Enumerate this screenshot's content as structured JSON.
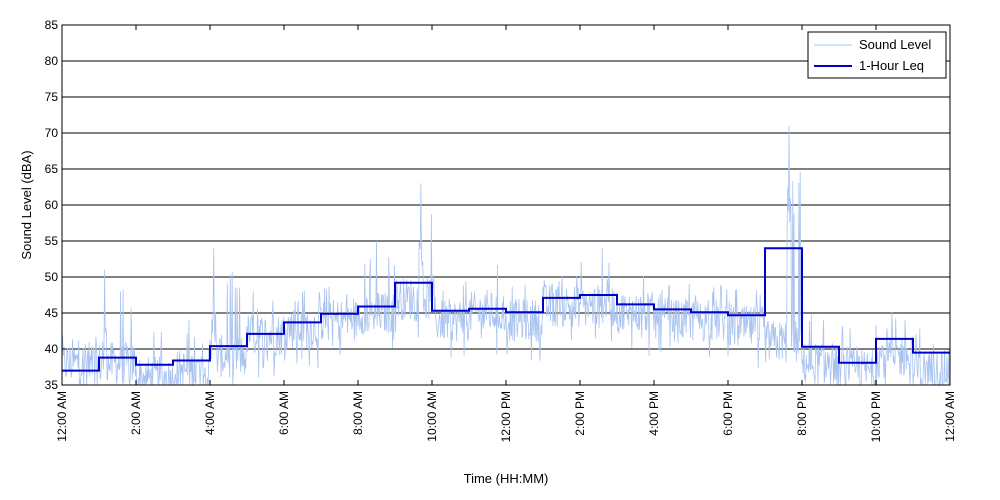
{
  "chart_data": {
    "type": "line",
    "title": "",
    "xlabel": "Time (HH:MM)",
    "ylabel": "Sound Level (dBA)",
    "ylim": [
      35,
      85
    ],
    "y_ticks": [
      35,
      40,
      45,
      50,
      55,
      60,
      65,
      70,
      75,
      80,
      85
    ],
    "xlim_hours": [
      0,
      24
    ],
    "x_ticks": [
      {
        "hour": 0,
        "label": "12:00 AM"
      },
      {
        "hour": 2,
        "label": "2:00 AM"
      },
      {
        "hour": 4,
        "label": "4:00 AM"
      },
      {
        "hour": 6,
        "label": "6:00 AM"
      },
      {
        "hour": 8,
        "label": "8:00 AM"
      },
      {
        "hour": 10,
        "label": "10:00 AM"
      },
      {
        "hour": 12,
        "label": "12:00 PM"
      },
      {
        "hour": 14,
        "label": "2:00 PM"
      },
      {
        "hour": 16,
        "label": "4:00 PM"
      },
      {
        "hour": 18,
        "label": "6:00 PM"
      },
      {
        "hour": 20,
        "label": "8:00 PM"
      },
      {
        "hour": 22,
        "label": "10:00 PM"
      },
      {
        "hour": 24,
        "label": "12:00 AM"
      }
    ],
    "grid": "horizontal",
    "legend_position": "top-right",
    "colors": {
      "sound_level": "#a9c3f0",
      "leq": "#0000cc"
    },
    "series": [
      {
        "name": "Sound Level",
        "style": "thin-light-blue",
        "peaks": [
          {
            "hour": 1.15,
            "value": 51
          },
          {
            "hour": 4.1,
            "value": 54
          },
          {
            "hour": 8.5,
            "value": 55
          },
          {
            "hour": 9.7,
            "value": 63
          },
          {
            "hour": 14.6,
            "value": 54
          },
          {
            "hour": 19.65,
            "value": 71
          }
        ],
        "hourly_typical": [
          38,
          38,
          36,
          37,
          39,
          42,
          43,
          44,
          45,
          47,
          44,
          45,
          44,
          46,
          46,
          45,
          44,
          44,
          43,
          41,
          38,
          37,
          39,
          37
        ],
        "hourly_max": [
          44,
          51,
          45,
          46,
          54,
          50,
          50,
          50,
          55,
          63,
          52,
          54,
          51,
          52,
          54,
          52,
          51,
          51,
          52,
          71,
          47,
          45,
          48,
          47
        ]
      },
      {
        "name": "1-Hour Leq",
        "style": "step",
        "x_hours": [
          0,
          1,
          2,
          3,
          4,
          5,
          6,
          7,
          8,
          9,
          10,
          11,
          12,
          13,
          14,
          15,
          16,
          17,
          18,
          19,
          20,
          21,
          22,
          23
        ],
        "values": [
          37.0,
          38.8,
          37.8,
          38.4,
          40.4,
          42.1,
          43.7,
          44.9,
          45.9,
          49.2,
          45.3,
          45.6,
          45.1,
          47.1,
          47.5,
          46.2,
          45.5,
          45.1,
          44.7,
          54.0,
          40.3,
          38.1,
          41.4,
          39.5
        ]
      }
    ]
  }
}
